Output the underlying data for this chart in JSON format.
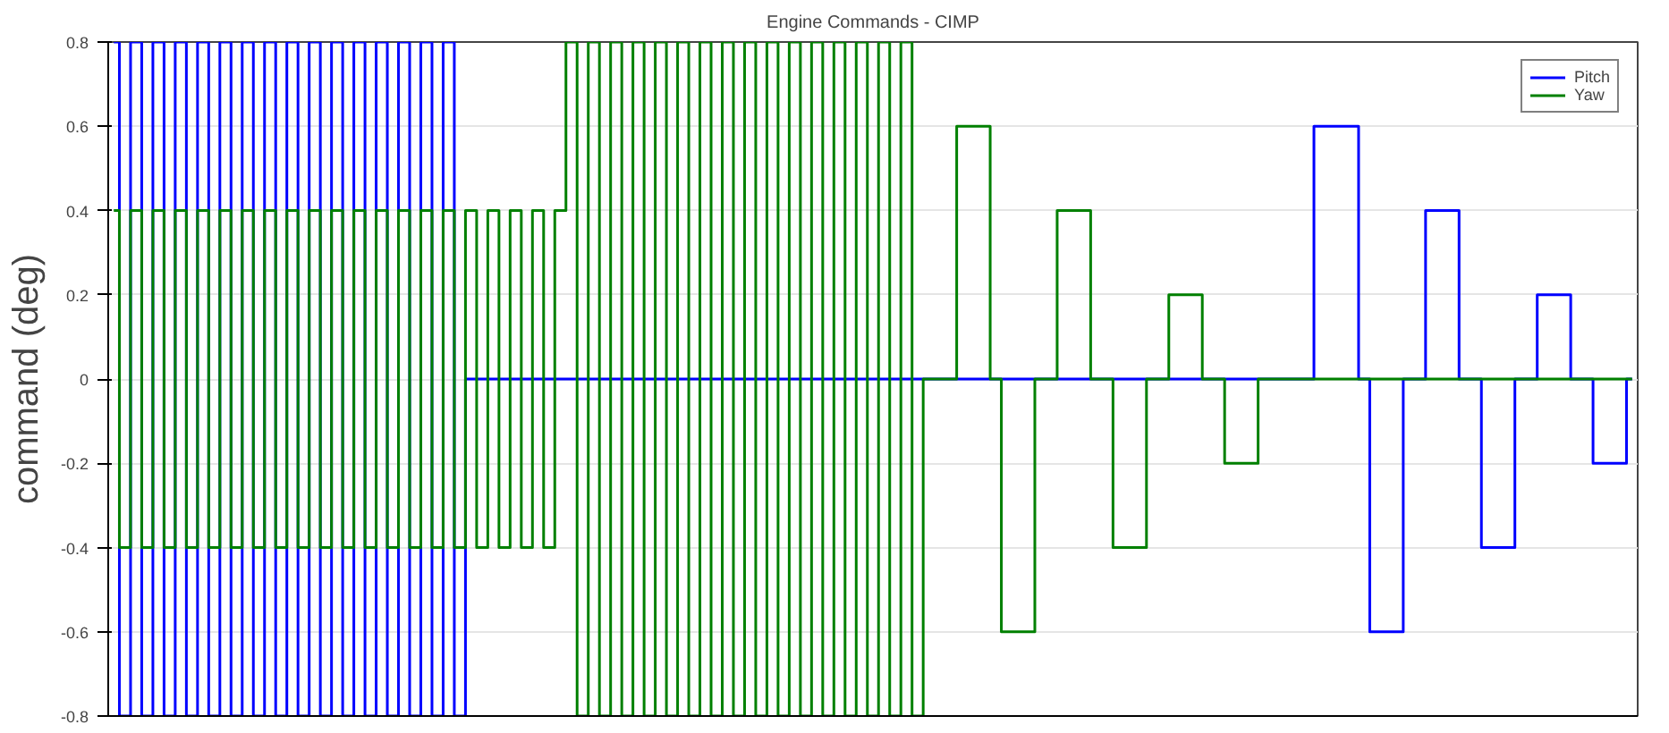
{
  "chart_data": {
    "type": "step",
    "title": "Engine Commands - CIMP",
    "ylabel": "command (deg)",
    "categories": [
      null,
      null,
      null,
      null,
      null,
      null,
      null,
      null,
      null,
      null,
      null,
      null,
      null,
      null,
      null,
      null,
      null,
      null,
      null,
      null,
      null,
      null,
      null,
      null,
      null,
      null,
      null,
      null,
      null,
      null,
      null,
      null,
      null,
      null,
      null,
      null,
      null,
      null,
      null,
      null,
      null,
      null,
      null,
      null,
      null,
      null,
      null,
      null,
      null,
      null,
      null,
      null,
      null,
      null,
      null,
      null,
      null,
      null,
      null,
      null,
      null,
      null,
      null,
      null,
      null,
      null,
      null,
      null,
      null,
      null,
      null,
      null,
      null,
      null,
      null,
      null,
      null,
      null,
      null,
      null,
      null,
      null,
      null,
      null,
      null,
      null,
      null,
      null,
      null,
      null,
      null,
      null,
      null,
      null,
      null,
      null,
      null,
      null,
      null,
      null,
      null,
      null,
      null,
      null,
      null,
      null,
      null,
      null,
      null,
      null,
      null,
      null,
      null,
      null,
      null,
      null,
      null,
      null,
      null,
      null,
      null,
      null,
      null,
      null,
      null,
      null,
      null,
      null,
      null,
      null,
      null,
      null,
      null,
      null,
      null,
      null,
      null
    ],
    "series": [
      {
        "name": "Pitch",
        "color": "#0000ff",
        "values": [
          0.8,
          -0.8,
          0.8,
          -0.8,
          0.8,
          -0.8,
          0.8,
          -0.8,
          0.8,
          -0.8,
          0.8,
          -0.8,
          0.8,
          -0.8,
          0.8,
          -0.8,
          0.8,
          -0.8,
          0.8,
          -0.8,
          0.8,
          -0.8,
          0.8,
          -0.8,
          0.8,
          -0.8,
          0.8,
          -0.8,
          0.8,
          -0.8,
          0.8,
          -0.8,
          0,
          0,
          0,
          0,
          0,
          0,
          0,
          0,
          0,
          0,
          0,
          0,
          0,
          0,
          0,
          0,
          0,
          0,
          0,
          0,
          0,
          0,
          0,
          0,
          0,
          0,
          0,
          0,
          0,
          0,
          0,
          0,
          0,
          0,
          0,
          0,
          0,
          0,
          0,
          0,
          0,
          0,
          0,
          0,
          0,
          0,
          0,
          0,
          0,
          0,
          0,
          0,
          0,
          0,
          0,
          0,
          0,
          0,
          0,
          0,
          0,
          0,
          0,
          0,
          0,
          0,
          0,
          0,
          0,
          0,
          0,
          0,
          0,
          0,
          0,
          0,
          0.6,
          0.6,
          0.6,
          0.6,
          0,
          -0.6,
          -0.6,
          -0.6,
          0,
          0,
          0.4,
          0.4,
          0.4,
          0,
          0,
          -0.4,
          -0.4,
          -0.4,
          0,
          0,
          0.2,
          0.2,
          0.2,
          0,
          0,
          -0.2,
          -0.2,
          -0.2,
          0
        ]
      },
      {
        "name": "Yaw",
        "color": "#008000",
        "values": [
          0.4,
          -0.4,
          0.4,
          -0.4,
          0.4,
          -0.4,
          0.4,
          -0.4,
          0.4,
          -0.4,
          0.4,
          -0.4,
          0.4,
          -0.4,
          0.4,
          -0.4,
          0.4,
          -0.4,
          0.4,
          -0.4,
          0.4,
          -0.4,
          0.4,
          -0.4,
          0.4,
          -0.4,
          0.4,
          -0.4,
          0.4,
          -0.4,
          0.4,
          -0.4,
          0.4,
          -0.4,
          0.4,
          -0.4,
          0.4,
          -0.4,
          0.4,
          -0.4,
          0.4,
          0.8,
          -0.8,
          0.8,
          -0.8,
          0.8,
          -0.8,
          0.8,
          -0.8,
          0.8,
          -0.8,
          0.8,
          -0.8,
          0.8,
          -0.8,
          0.8,
          -0.8,
          0.8,
          -0.8,
          0.8,
          -0.8,
          0.8,
          -0.8,
          0.8,
          -0.8,
          0.8,
          -0.8,
          0.8,
          -0.8,
          0.8,
          -0.8,
          0.8,
          -0.8,
          0,
          0,
          0,
          0.6,
          0.6,
          0.6,
          0,
          -0.6,
          -0.6,
          -0.6,
          0,
          0,
          0.4,
          0.4,
          0.4,
          0,
          0,
          -0.4,
          -0.4,
          -0.4,
          0,
          0,
          0.2,
          0.2,
          0.2,
          0,
          0,
          -0.2,
          -0.2,
          -0.2,
          0,
          0,
          0,
          0,
          0,
          0,
          0,
          0,
          0,
          0,
          0,
          0,
          0,
          0,
          0,
          0,
          0,
          0,
          0,
          0,
          0,
          0,
          0,
          0,
          0,
          0,
          0,
          0,
          0,
          0,
          0,
          0,
          0,
          0
        ]
      }
    ],
    "ylim": [
      -0.8,
      0.8
    ],
    "yticks": [
      -0.8,
      -0.6,
      -0.4,
      -0.2,
      0,
      0.2,
      0.4,
      0.6,
      0.8
    ],
    "grid": "y",
    "legend": "top right",
    "tick_labels": "y",
    "line_style": "solid",
    "marker": "none"
  }
}
